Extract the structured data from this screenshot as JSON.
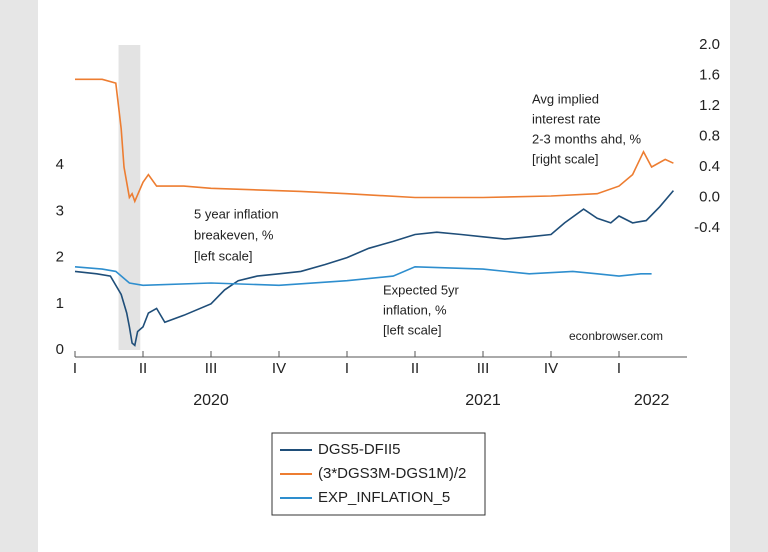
{
  "chart_data": {
    "type": "line",
    "xticks": [
      {
        "value": 2020,
        "label": "I"
      },
      {
        "value": 2020.25,
        "label": "II"
      },
      {
        "value": 2020.5,
        "label": "III"
      },
      {
        "value": 2020.75,
        "label": "IV"
      },
      {
        "value": 2021,
        "label": "I"
      },
      {
        "value": 2021.25,
        "label": "II"
      },
      {
        "value": 2021.5,
        "label": "III"
      },
      {
        "value": 2021.75,
        "label": "IV"
      },
      {
        "value": 2022,
        "label": "I"
      }
    ],
    "year_labels": [
      {
        "value": 2020.5,
        "label": "2020"
      },
      {
        "value": 2021.5,
        "label": "2021"
      },
      {
        "value": 2022.12,
        "label": "2022"
      }
    ],
    "xlim": [
      2020,
      2022.25
    ],
    "ylim": [
      0,
      6.6
    ],
    "yticks": [
      0,
      1,
      2,
      3,
      4
    ],
    "y2lim": [
      -2,
      2
    ],
    "y2ticks": [
      {
        "value": 2,
        "label": "2.0"
      },
      {
        "value": 1.6,
        "label": "1.6"
      },
      {
        "value": 1.2,
        "label": "1.2"
      },
      {
        "value": 0.8,
        "label": "0.8"
      },
      {
        "value": 0.4,
        "label": "0.4"
      },
      {
        "value": 0,
        "label": "0.0"
      },
      {
        "value": -0.4,
        "label": "-0.4"
      }
    ],
    "shaded_periods": [
      [
        2020.16,
        2020.24
      ]
    ],
    "series": [
      {
        "name": "DGS5-DFII5",
        "color": "#1f4e79",
        "axis": "y",
        "x": [
          2020.0,
          2020.08,
          2020.13,
          2020.17,
          2020.19,
          2020.2,
          2020.21,
          2020.22,
          2020.23,
          2020.25,
          2020.27,
          2020.3,
          2020.33,
          2020.4,
          2020.5,
          2020.55,
          2020.6,
          2020.67,
          2020.75,
          2020.83,
          2020.92,
          2021.0,
          2021.08,
          2021.17,
          2021.25,
          2021.33,
          2021.42,
          2021.5,
          2021.58,
          2021.67,
          2021.75,
          2021.8,
          2021.87,
          2021.92,
          2021.97,
          2022.0,
          2022.05,
          2022.1,
          2022.15,
          2022.2
        ],
        "values": [
          1.7,
          1.65,
          1.6,
          1.2,
          0.8,
          0.5,
          0.15,
          0.1,
          0.4,
          0.5,
          0.8,
          0.9,
          0.6,
          0.75,
          1.0,
          1.3,
          1.5,
          1.6,
          1.65,
          1.7,
          1.85,
          2.0,
          2.2,
          2.35,
          2.5,
          2.55,
          2.5,
          2.45,
          2.4,
          2.45,
          2.5,
          2.75,
          3.05,
          2.85,
          2.75,
          2.9,
          2.75,
          2.8,
          3.1,
          3.45
        ]
      },
      {
        "name": "(3*DGS3M-DGS1M)/2",
        "color": "#ed7d31",
        "axis": "y2",
        "x": [
          2020.0,
          2020.1,
          2020.15,
          2020.17,
          2020.18,
          2020.19,
          2020.2,
          2020.21,
          2020.22,
          2020.25,
          2020.27,
          2020.3,
          2020.4,
          2020.5,
          2020.67,
          2020.83,
          2021.0,
          2021.25,
          2021.5,
          2021.75,
          2021.92,
          2022.0,
          2022.05,
          2022.09,
          2022.12,
          2022.17,
          2022.2
        ],
        "values": [
          1.55,
          1.55,
          1.5,
          0.9,
          0.4,
          0.2,
          0.0,
          0.05,
          -0.05,
          0.2,
          0.3,
          0.15,
          0.15,
          0.12,
          0.1,
          0.08,
          0.05,
          0.0,
          0.0,
          0.02,
          0.05,
          0.15,
          0.3,
          0.6,
          0.4,
          0.5,
          0.45
        ]
      },
      {
        "name": "EXP_INFLATION_5",
        "color": "#2e8ece",
        "axis": "y",
        "x": [
          2020.0,
          2020.1,
          2020.15,
          2020.2,
          2020.25,
          2020.5,
          2020.75,
          2021.0,
          2021.17,
          2021.25,
          2021.5,
          2021.67,
          2021.83,
          2021.92,
          2022.0,
          2022.08,
          2022.12
        ],
        "values": [
          1.8,
          1.75,
          1.7,
          1.45,
          1.4,
          1.45,
          1.4,
          1.5,
          1.6,
          1.8,
          1.75,
          1.65,
          1.7,
          1.65,
          1.6,
          1.65,
          1.65
        ]
      }
    ],
    "annotations": [
      {
        "lines": [
          "Avg implied",
          "interest rate",
          "2-3 months ahd, %",
          "[right scale]"
        ],
        "color": "#ed7d31"
      },
      {
        "lines": [
          "5 year inflation",
          "breakeven, %",
          "[left scale]"
        ],
        "color": "#1f4e79"
      },
      {
        "lines": [
          "Expected 5yr",
          "inflation, %",
          "[left scale]"
        ],
        "color": "#2e8ece"
      },
      {
        "lines": [
          "econbrowser.com"
        ],
        "color": "#222222"
      }
    ]
  }
}
